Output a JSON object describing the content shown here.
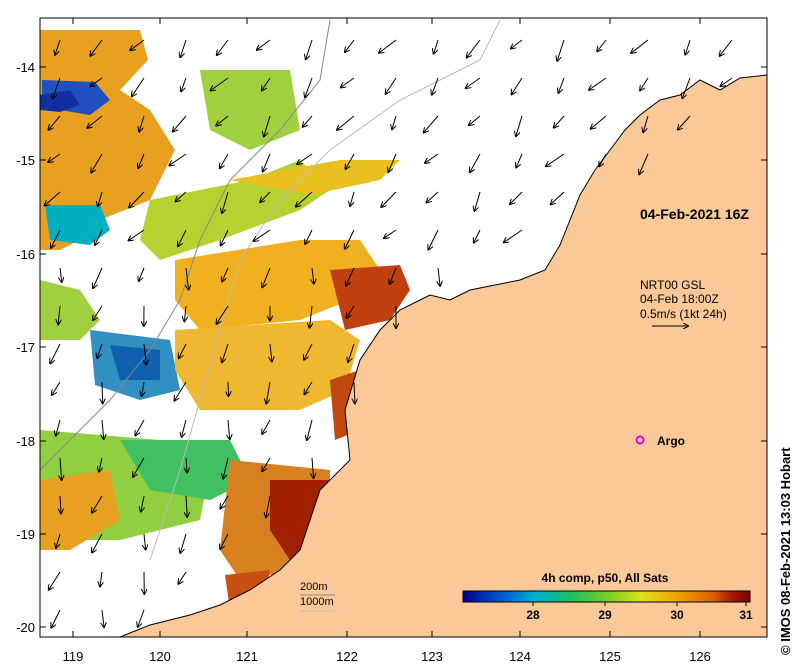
{
  "map": {
    "x_ticks": [
      "119",
      "120",
      "121",
      "122",
      "123",
      "124",
      "125",
      "126"
    ],
    "y_ticks": [
      "-14",
      "-15",
      "-16",
      "-17",
      "-18",
      "-19",
      "-20"
    ],
    "land_color": "#fbc998",
    "coast_color": "#000000"
  },
  "annotations": {
    "timestamp": "04-Feb-2021 16Z",
    "current_source": "NRT00 GSL",
    "current_time": "04-Feb 18:00Z",
    "current_scale": "0.5m/s (1kt 24h)",
    "argo_label": "Argo",
    "isobath_200": "200m",
    "isobath_1000": "1000m"
  },
  "colorbar": {
    "title": "4h comp, p50, All Sats",
    "ticks": [
      "28",
      "29",
      "30",
      "31"
    ],
    "colors": [
      "#00008b",
      "#0050d0",
      "#00b0d0",
      "#20c060",
      "#70d020",
      "#e0e020",
      "#f0a000",
      "#d86000",
      "#a01800",
      "#7a0000"
    ]
  },
  "credit": "IMOS 08-Feb-2021 13:03 Hobart",
  "credit_symbol": "©"
}
